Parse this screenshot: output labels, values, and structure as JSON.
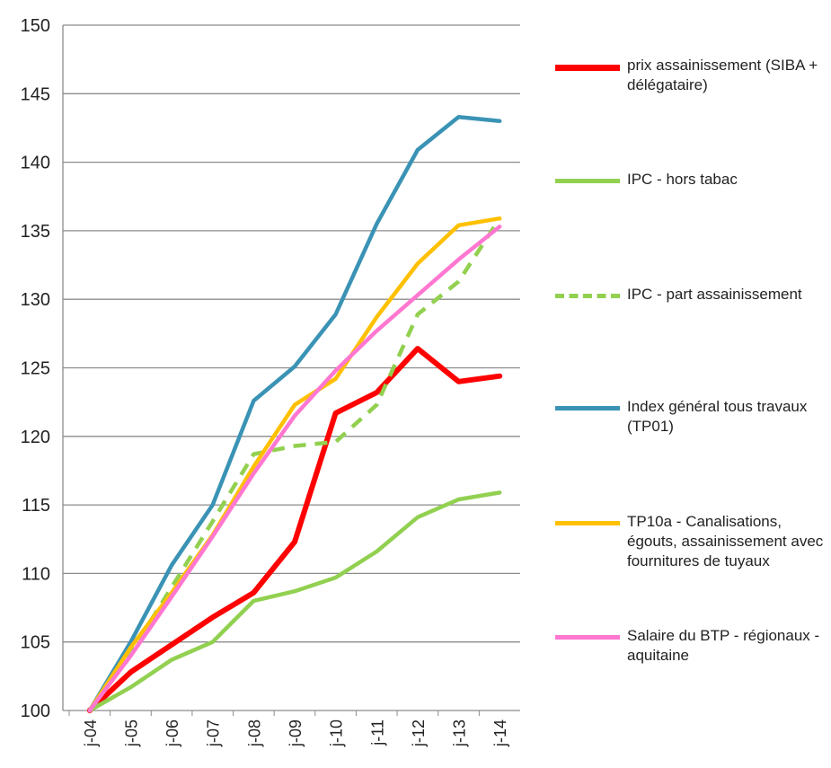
{
  "chart_data": {
    "type": "line",
    "categories": [
      "j-04",
      "j-05",
      "j-06",
      "j-07",
      "j-08",
      "j-09",
      "j-10",
      "j-11",
      "j-12",
      "j-13",
      "j-14"
    ],
    "ylim": [
      100,
      150
    ],
    "yticks": [
      100,
      105,
      110,
      115,
      120,
      125,
      130,
      135,
      140,
      145,
      150
    ],
    "grid": true,
    "legend": "right",
    "series": [
      {
        "name": "prix assainissement (SIBA + délégataire)",
        "color": "#ff0000",
        "dashed": false,
        "values": [
          100,
          102.8,
          104.8,
          106.8,
          108.6,
          112.3,
          121.7,
          123.2,
          126.4,
          124.0,
          124.4
        ]
      },
      {
        "name": "IPC - hors tabac",
        "color": "#92d050",
        "dashed": false,
        "values": [
          100,
          101.7,
          103.7,
          105.0,
          108.0,
          108.7,
          109.7,
          111.6,
          114.1,
          115.4,
          115.9
        ]
      },
      {
        "name": "IPC - part assainissement",
        "color": "#92d050",
        "dashed": true,
        "values": [
          100,
          104.2,
          109.0,
          113.8,
          118.7,
          119.3,
          119.6,
          122.3,
          128.9,
          131.3,
          135.9
        ]
      },
      {
        "name": "Index général tous travaux (TP01)",
        "color": "#3a93b5",
        "dashed": false,
        "values": [
          100,
          105.0,
          110.6,
          115.0,
          122.6,
          125.1,
          128.9,
          135.5,
          140.9,
          143.3,
          143.0
        ]
      },
      {
        "name": "TP10a - Canalisations, égouts, assainissement avec fournitures de tuyaux",
        "color": "#ffc000",
        "dashed": false,
        "values": [
          100,
          104.6,
          108.6,
          112.8,
          117.8,
          122.3,
          124.2,
          128.7,
          132.6,
          135.4,
          135.9
        ]
      },
      {
        "name": "Salaire du BTP - régionaux - aquitaine",
        "color": "#ff77d0",
        "dashed": false,
        "values": [
          100,
          104.0,
          108.3,
          112.7,
          117.3,
          121.5,
          124.8,
          127.7,
          130.3,
          132.9,
          135.3
        ]
      }
    ]
  }
}
